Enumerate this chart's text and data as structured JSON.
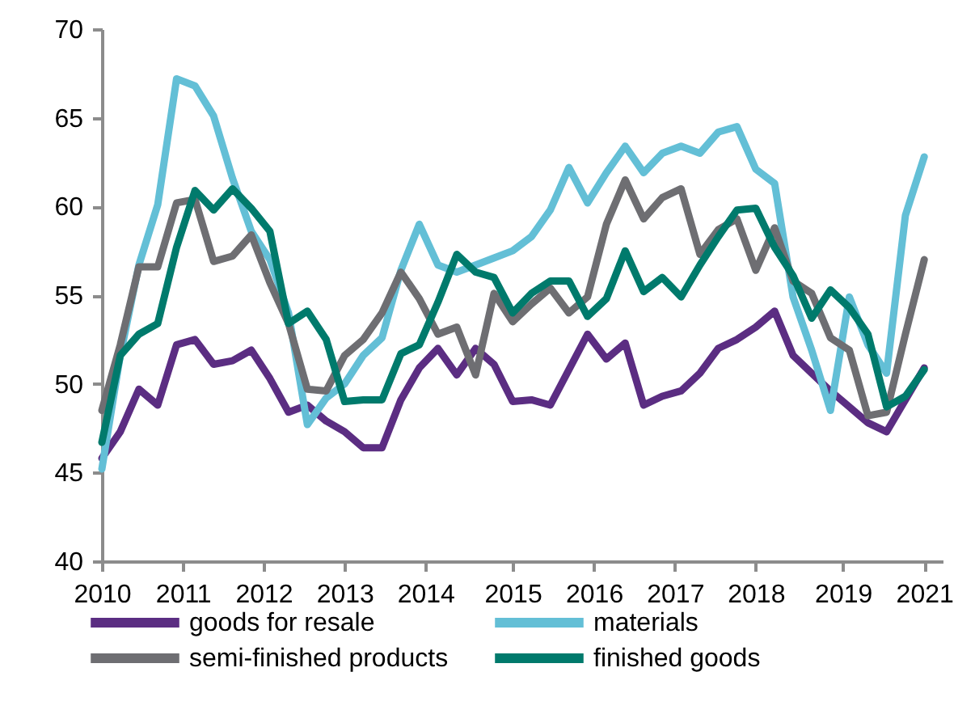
{
  "chart_data": {
    "type": "line",
    "x": [
      "2010-01",
      "2010-04",
      "2010-07",
      "2010-10",
      "2011-01",
      "2011-04",
      "2011-07",
      "2011-10",
      "2012-01",
      "2012-04",
      "2012-07",
      "2012-10",
      "2013-01",
      "2013-04",
      "2013-07",
      "2013-10",
      "2014-01",
      "2014-04",
      "2014-07",
      "2014-10",
      "2015-01",
      "2015-04",
      "2015-07",
      "2015-10",
      "2016-01",
      "2016-04",
      "2016-07",
      "2016-10",
      "2017-01",
      "2017-04",
      "2017-07",
      "2017-10",
      "2018-01",
      "2018-04",
      "2018-07",
      "2018-10",
      "2019-01",
      "2019-04",
      "2019-07",
      "2019-10",
      "2020-01",
      "2020-04",
      "2020-07",
      "2020-10",
      "2021-01"
    ],
    "series": [
      {
        "name": "goods for resale",
        "color": "#5b2d82",
        "values": [
          45.8,
          47.3,
          49.7,
          48.8,
          52.2,
          52.5,
          51.1,
          51.3,
          51.9,
          50.3,
          48.4,
          48.8,
          47.9,
          47.3,
          46.4,
          46.4,
          49.1,
          50.9,
          52,
          50.5,
          52,
          51.1,
          49,
          49.1,
          48.8,
          50.8,
          52.8,
          51.4,
          52.3,
          48.8,
          49.3,
          49.6,
          50.6,
          52,
          52.5,
          53.2,
          54.1,
          51.6,
          50.6,
          49.6,
          48.7,
          47.8,
          47.3,
          49.1,
          50.9
        ]
      },
      {
        "name": "materials",
        "color": "#63bfd6",
        "values": [
          45.2,
          51.6,
          56.7,
          60.1,
          67.2,
          66.8,
          65.1,
          61.6,
          58.6,
          57,
          54,
          47.7,
          49.2,
          50,
          51.6,
          52.6,
          56.4,
          59,
          56.7,
          56.3,
          56.7,
          57.1,
          57.5,
          58.3,
          59.8,
          62.2,
          60.2,
          61.9,
          63.4,
          61.9,
          63,
          63.4,
          63,
          64.2,
          64.5,
          62.1,
          61.3,
          54.9,
          51.9,
          48.5,
          54.9,
          52.2,
          50.6,
          59.5,
          62.8
        ]
      },
      {
        "name": "semi-finished products",
        "color": "#6e6e72",
        "values": [
          48.5,
          52.2,
          56.6,
          56.6,
          60.2,
          60.4,
          56.9,
          57.2,
          58.4,
          55.7,
          53.4,
          49.7,
          49.6,
          51.6,
          52.5,
          54,
          56.3,
          54.8,
          52.8,
          53.2,
          50.5,
          55.1,
          53.5,
          54.5,
          55.4,
          54,
          54.9,
          59,
          61.5,
          59.3,
          60.5,
          61,
          57.3,
          58.7,
          59.3,
          56.4,
          58.8,
          55.8,
          55.1,
          52.6,
          51.9,
          48.2,
          48.4,
          52.8,
          57
        ]
      },
      {
        "name": "finished goods",
        "color": "#007a6c",
        "values": [
          46.7,
          51.6,
          52.8,
          53.4,
          57.7,
          60.9,
          59.8,
          61,
          59.9,
          58.6,
          53.4,
          54.1,
          52.5,
          49,
          49.1,
          49.1,
          51.7,
          52.2,
          54.6,
          57.3,
          56.3,
          56,
          54,
          55.1,
          55.8,
          55.8,
          53.8,
          54.8,
          57.5,
          55.2,
          56,
          54.9,
          56.7,
          58.3,
          59.8,
          59.9,
          57.7,
          56.1,
          53.7,
          55.3,
          54.3,
          52.8,
          48.7,
          49.3,
          50.8
        ]
      }
    ],
    "xlim": [
      "2010-01",
      "2021-04"
    ],
    "xticks": [
      {
        "value": "2010-01",
        "label": "2010"
      },
      {
        "value": "2011-02",
        "label": "2011"
      },
      {
        "value": "2012-03",
        "label": "2012"
      },
      {
        "value": "2013-04",
        "label": "2013"
      },
      {
        "value": "2014-05",
        "label": "2014"
      },
      {
        "value": "2015-07",
        "label": "2015"
      },
      {
        "value": "2016-08",
        "label": "2016"
      },
      {
        "value": "2017-09",
        "label": "2017"
      },
      {
        "value": "2018-10",
        "label": "2018"
      },
      {
        "value": "2019-12",
        "label": "2019"
      },
      {
        "value": "2021-01",
        "label": "2021"
      }
    ],
    "ylim": [
      40,
      70
    ],
    "yticks": [
      40,
      45,
      50,
      55,
      60,
      65,
      70
    ],
    "legend": "bottom",
    "grid": false,
    "marker": "none",
    "line_style": "solid"
  }
}
